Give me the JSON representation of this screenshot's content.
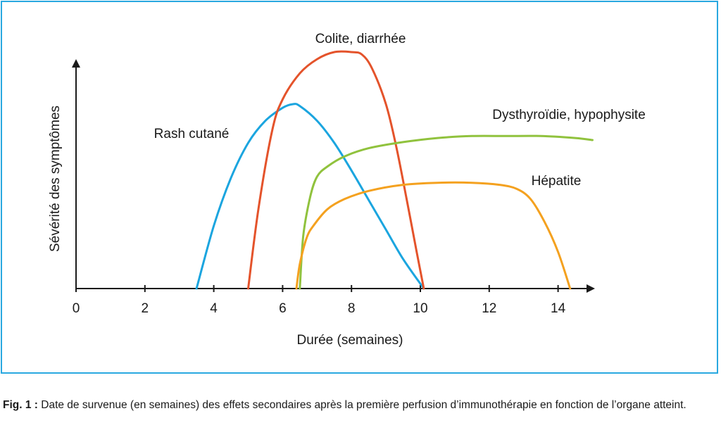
{
  "chart_data": {
    "type": "line",
    "xlabel": "Durée (semaines)",
    "ylabel": "Sévérité des symptômes",
    "xlim": [
      0,
      15
    ],
    "ylim": [
      0,
      1
    ],
    "x_ticks": [
      "0",
      "2",
      "4",
      "6",
      "8",
      "10",
      "12",
      "14"
    ],
    "grid": false,
    "series": [
      {
        "name": "Rash cutané",
        "color": "#1ba5df",
        "x": [
          3.5,
          4.0,
          4.5,
          5.0,
          5.5,
          6.0,
          6.3,
          6.5,
          7.0,
          7.5,
          8.0,
          8.5,
          9.0,
          9.5,
          10.1
        ],
        "y": [
          0.0,
          0.34,
          0.6,
          0.79,
          0.91,
          0.98,
          1.0,
          0.99,
          0.91,
          0.79,
          0.64,
          0.48,
          0.32,
          0.16,
          0.0
        ]
      },
      {
        "name": "Colite, diarrhée",
        "color": "#e4532b",
        "x": [
          5.0,
          5.3,
          5.7,
          6.0,
          6.5,
          7.0,
          7.5,
          8.0,
          8.3,
          8.6,
          9.0,
          9.3,
          9.6,
          9.9,
          10.1
        ],
        "y": [
          0.0,
          0.34,
          0.67,
          0.8,
          0.91,
          0.97,
          1.0,
          1.0,
          0.99,
          0.93,
          0.78,
          0.6,
          0.38,
          0.15,
          0.0
        ]
      },
      {
        "name": "Dysthyroïdie, hypophysite",
        "color": "#90c23d",
        "x": [
          6.5,
          6.6,
          6.8,
          7.0,
          7.3,
          7.8,
          8.5,
          9.5,
          10.5,
          11.5,
          12.5,
          13.5,
          14.5,
          15.0
        ],
        "y": [
          0.0,
          0.26,
          0.45,
          0.55,
          0.6,
          0.65,
          0.69,
          0.72,
          0.74,
          0.75,
          0.75,
          0.75,
          0.74,
          0.73
        ]
      },
      {
        "name": "Hépatite",
        "color": "#f4a11f",
        "x": [
          6.4,
          6.5,
          6.7,
          6.9,
          7.3,
          7.8,
          8.5,
          9.5,
          10.5,
          11.5,
          12.3,
          12.8,
          13.2,
          13.6,
          14.0,
          14.35
        ],
        "y": [
          0.0,
          0.12,
          0.25,
          0.31,
          0.39,
          0.44,
          0.48,
          0.51,
          0.52,
          0.52,
          0.51,
          0.49,
          0.44,
          0.33,
          0.18,
          0.0
        ]
      }
    ],
    "annotations": [
      "Colite, diarrhée",
      "Rash cutané",
      "Dysthyroïdie, hypophysite",
      "Hépatite"
    ]
  },
  "caption": {
    "prefix": "Fig. 1 :",
    "text": " Date de survenue (en semaines) des effets secondaires après la première perfusion d’immunothérapie en fonction de l’organe atteint."
  }
}
